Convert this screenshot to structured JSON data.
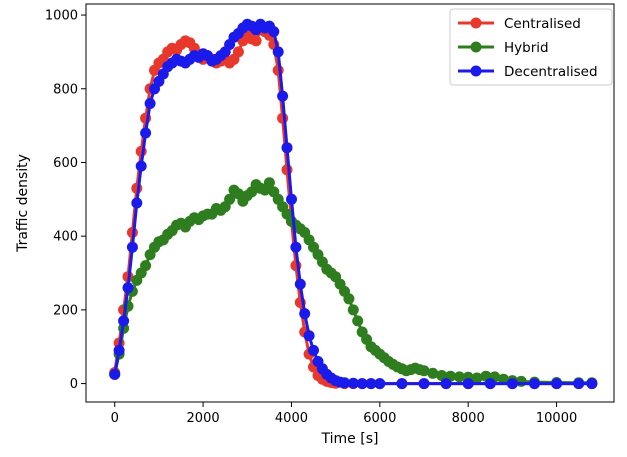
{
  "chart_data": {
    "type": "line",
    "xlabel": "Time [s]",
    "ylabel": "Traffic density",
    "xlim": [
      -650,
      11300
    ],
    "ylim": [
      -50,
      1030
    ],
    "xticks": [
      0,
      2000,
      4000,
      6000,
      8000,
      10000
    ],
    "yticks": [
      0,
      200,
      400,
      600,
      800,
      1000
    ],
    "grid": false,
    "legend": "top-right",
    "series": [
      {
        "name": "Centralised",
        "color": "#e8372b",
        "x": [
          0,
          100,
          200,
          300,
          400,
          500,
          600,
          700,
          800,
          900,
          1000,
          1100,
          1200,
          1300,
          1400,
          1500,
          1600,
          1700,
          1800,
          1900,
          2000,
          2100,
          2200,
          2300,
          2400,
          2500,
          2600,
          2700,
          2800,
          2900,
          3000,
          3100,
          3200,
          3300,
          3400,
          3500,
          3600,
          3700,
          3800,
          3900,
          4000,
          4100,
          4200,
          4300,
          4400,
          4500,
          4600,
          4700,
          4800,
          4900,
          5000,
          5200,
          5400,
          5600,
          5800,
          6000,
          6500,
          7000,
          7500,
          8000,
          8500,
          9000,
          9500,
          10000,
          10500,
          10800
        ],
        "y": [
          30,
          110,
          200,
          290,
          410,
          530,
          630,
          720,
          800,
          850,
          870,
          880,
          900,
          910,
          905,
          920,
          930,
          925,
          910,
          890,
          880,
          890,
          880,
          870,
          875,
          880,
          870,
          880,
          900,
          930,
          945,
          935,
          930,
          960,
          955,
          945,
          920,
          850,
          720,
          580,
          440,
          320,
          220,
          140,
          80,
          45,
          22,
          12,
          6,
          3,
          1,
          0,
          0,
          0,
          0,
          0,
          0,
          0,
          0,
          0,
          0,
          0,
          0,
          0,
          0,
          0
        ]
      },
      {
        "name": "Hybrid",
        "color": "#2e7d1e",
        "x": [
          0,
          100,
          200,
          300,
          400,
          500,
          600,
          700,
          800,
          900,
          1000,
          1100,
          1200,
          1300,
          1400,
          1500,
          1600,
          1700,
          1800,
          1900,
          2000,
          2100,
          2200,
          2300,
          2400,
          2500,
          2600,
          2700,
          2800,
          2900,
          3000,
          3100,
          3200,
          3300,
          3400,
          3500,
          3600,
          3700,
          3800,
          3900,
          4000,
          4100,
          4200,
          4300,
          4400,
          4500,
          4600,
          4700,
          4800,
          4900,
          5000,
          5100,
          5200,
          5300,
          5400,
          5500,
          5600,
          5700,
          5800,
          5900,
          6000,
          6100,
          6200,
          6300,
          6400,
          6500,
          6600,
          6700,
          6800,
          6900,
          7000,
          7200,
          7400,
          7600,
          7800,
          8000,
          8200,
          8400,
          8600,
          8800,
          9000,
          9200,
          9500,
          10000,
          10500,
          10800
        ],
        "y": [
          25,
          80,
          150,
          210,
          250,
          280,
          300,
          320,
          350,
          370,
          385,
          390,
          405,
          415,
          430,
          435,
          425,
          440,
          450,
          445,
          455,
          460,
          460,
          475,
          470,
          480,
          500,
          525,
          515,
          495,
          510,
          520,
          540,
          530,
          525,
          545,
          520,
          500,
          480,
          460,
          440,
          430,
          420,
          410,
          390,
          370,
          350,
          330,
          310,
          300,
          290,
          270,
          250,
          230,
          200,
          170,
          140,
          120,
          100,
          90,
          80,
          70,
          60,
          52,
          45,
          40,
          35,
          38,
          42,
          38,
          35,
          28,
          22,
          20,
          18,
          17,
          15,
          20,
          18,
          12,
          8,
          6,
          4,
          3,
          2,
          2
        ]
      },
      {
        "name": "Decentralised",
        "color": "#1a1aeb",
        "x": [
          0,
          100,
          200,
          300,
          400,
          500,
          600,
          700,
          800,
          900,
          1000,
          1100,
          1200,
          1300,
          1400,
          1500,
          1600,
          1700,
          1800,
          1900,
          2000,
          2100,
          2200,
          2300,
          2400,
          2500,
          2600,
          2700,
          2800,
          2900,
          3000,
          3100,
          3200,
          3300,
          3400,
          3500,
          3600,
          3700,
          3800,
          3900,
          4000,
          4100,
          4200,
          4300,
          4400,
          4500,
          4600,
          4700,
          4800,
          4900,
          5000,
          5100,
          5200,
          5400,
          5600,
          5800,
          6000,
          6500,
          7000,
          7500,
          8000,
          8500,
          9000,
          9500,
          10000,
          10500,
          10800
        ],
        "y": [
          25,
          90,
          170,
          260,
          370,
          490,
          590,
          680,
          760,
          800,
          820,
          840,
          860,
          870,
          880,
          875,
          870,
          880,
          890,
          885,
          895,
          890,
          875,
          880,
          890,
          900,
          920,
          940,
          950,
          965,
          975,
          970,
          960,
          975,
          965,
          970,
          955,
          900,
          780,
          640,
          500,
          370,
          270,
          190,
          130,
          90,
          60,
          40,
          25,
          15,
          8,
          4,
          2,
          1,
          0,
          0,
          0,
          0,
          0,
          0,
          0,
          0,
          0,
          0,
          0,
          0,
          0
        ]
      }
    ]
  }
}
